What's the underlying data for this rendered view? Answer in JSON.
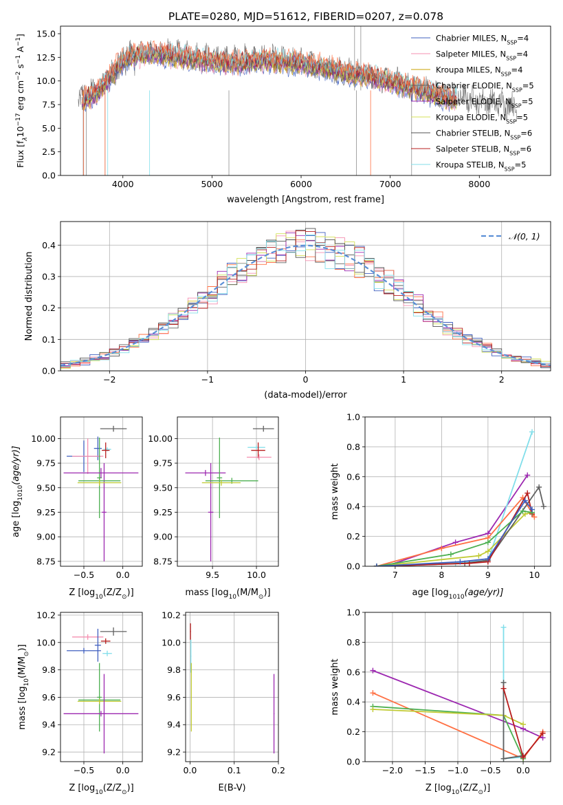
{
  "figure_title": "PLATE=0280, MJD=51612, FIBERID=0207, z=0.078",
  "colors": {
    "chabrier_miles": "#3f5fbf",
    "salpeter_miles": "#f58fb0",
    "kroupa_miles": "#c8a000",
    "chabrier_elodie": "#606060",
    "salpeter_elodie": "#9c27b0",
    "kroupa_elodie": "#d4e157",
    "chabrier_stelib": "#505050",
    "salpeter_stelib": "#b71c1c",
    "kroupa_stelib": "#80deea",
    "model_a": "#ff7043",
    "model_b": "#4caf50",
    "model_c": "#c0ca33",
    "gaussian": "#5b8fd6",
    "grid": "#b0b0b0"
  },
  "chart_data": [
    {
      "id": "spectrum",
      "type": "line",
      "xlabel": "wavelength [Angstrom, rest frame]",
      "ylabel": "Flux [f",
      "ylabel_parts": [
        "Flux [f",
        "λ",
        "10",
        "−17",
        " erg cm",
        "−2",
        " s",
        "−1",
        " A",
        "−1",
        "]"
      ],
      "xlim": [
        3300,
        8800
      ],
      "ylim": [
        0,
        15.8
      ],
      "xticks": [
        4000,
        5000,
        6000,
        7000,
        8000
      ],
      "yticks": [
        0.0,
        2.5,
        5.0,
        7.5,
        10.0,
        12.5,
        15.0
      ],
      "grid": false,
      "legend_position": "top-right",
      "legend": [
        {
          "label": "Chabrier MILES, N",
          "n": "4",
          "color": "#3f5fbf"
        },
        {
          "label": "Salpeter MILES, N",
          "n": "4",
          "color": "#f58fb0"
        },
        {
          "label": "Kroupa MILES, N",
          "n": "4",
          "color": "#c8a000"
        },
        {
          "label": "Chabrier ELODIE, N",
          "n": "5",
          "color": "#606060"
        },
        {
          "label": "Salpeter ELODIE, N",
          "n": "5",
          "color": "#9c27b0"
        },
        {
          "label": "Kroupa ELODIE, N",
          "n": "5",
          "color": "#d4e157"
        },
        {
          "label": "Chabrier STELIB, N",
          "n": "6",
          "color": "#505050"
        },
        {
          "label": "Salpeter STELIB, N",
          "n": "6",
          "color": "#b71c1c"
        },
        {
          "label": "Kroupa STELIB, N",
          "n": "5",
          "color": "#80deea"
        }
      ],
      "legend_sub": "SSP",
      "continuum": [
        [
          3550,
          7.8
        ],
        [
          3700,
          8.6
        ],
        [
          3850,
          10.2
        ],
        [
          3950,
          11.7
        ],
        [
          4100,
          12.6
        ],
        [
          4400,
          12.8
        ],
        [
          4700,
          12.4
        ],
        [
          5000,
          11.9
        ],
        [
          5300,
          11.8
        ],
        [
          5600,
          12.1
        ],
        [
          5900,
          11.9
        ],
        [
          6200,
          11.5
        ],
        [
          6500,
          10.8
        ],
        [
          6800,
          10.3
        ],
        [
          7100,
          9.6
        ],
        [
          7400,
          8.8
        ],
        [
          7700,
          7.9
        ]
      ],
      "observed_continuum": [
        [
          3500,
          8.2
        ],
        [
          3700,
          9.0
        ],
        [
          3900,
          10.8
        ],
        [
          4100,
          12.5
        ],
        [
          4400,
          13.0
        ],
        [
          4800,
          12.6
        ],
        [
          5200,
          12.3
        ],
        [
          5600,
          12.4
        ],
        [
          6000,
          12.0
        ],
        [
          6400,
          11.2
        ],
        [
          6800,
          10.6
        ],
        [
          7200,
          9.6
        ],
        [
          7600,
          8.6
        ],
        [
          8000,
          7.9
        ],
        [
          8300,
          7.5
        ],
        [
          8420,
          7.3
        ]
      ]
    },
    {
      "id": "residuals",
      "type": "area",
      "xlabel": "(data-model)/error",
      "ylabel": "Normed distribution",
      "xlim": [
        -2.5,
        2.5
      ],
      "ylim": [
        0,
        0.475
      ],
      "xticks": [
        -2,
        -1,
        0,
        1,
        2
      ],
      "xtick_labels": [
        "−2",
        "−1",
        "0",
        "1",
        "2"
      ],
      "yticks": [
        0.0,
        0.1,
        0.2,
        0.3,
        0.4
      ],
      "grid": true,
      "legend_position": "top-right",
      "legend_label": "𝒩(0, 1)",
      "bin_width": 0.1
    },
    {
      "id": "age_vs_z",
      "type": "scatter",
      "xlabel": "Z [log",
      "xlabel_tail": "(Z/Z",
      "ylabel": "age  [log",
      "ylabel_tail": "(age/yr)]",
      "xlim": [
        -0.8,
        0.25
      ],
      "ylim": [
        8.7,
        10.22
      ],
      "xticks": [
        -0.5,
        0.0
      ],
      "xtick_labels": [
        "−0.5",
        "0.0"
      ],
      "yticks": [
        8.75,
        9.0,
        9.25,
        9.5,
        9.75,
        10.0
      ],
      "ytick_labels": [
        "8.75",
        "9.00",
        "9.25",
        "9.50",
        "9.75",
        "10.00"
      ],
      "grid": true,
      "points": [
        {
          "x": -0.12,
          "y": 10.1,
          "xe": 0.17,
          "ye": 0.03,
          "color": "#606060"
        },
        {
          "x": -0.2,
          "y": 9.89,
          "xe": 0.05,
          "ye": 0.02,
          "color": "#80deea"
        },
        {
          "x": -0.32,
          "y": 9.9,
          "xe": 0.05,
          "ye": 0.12,
          "color": "#3f5fbf"
        },
        {
          "x": -0.22,
          "y": 9.88,
          "xe": 0.05,
          "ye": 0.08,
          "color": "#b71c1c"
        },
        {
          "x": -0.5,
          "y": 9.82,
          "xe": 0.22,
          "ye": 0.16,
          "color": "#3f5fbf"
        },
        {
          "x": -0.45,
          "y": 9.82,
          "xe": 0.2,
          "ye": 0.18,
          "color": "#f58fb0"
        },
        {
          "x": -0.3,
          "y": 9.6,
          "xe": 0.03,
          "ye": 0.41,
          "color": "#4caf50"
        },
        {
          "x": -0.24,
          "y": 9.25,
          "xe": 0.03,
          "ye": 0.5,
          "color": "#9c27b0"
        },
        {
          "x": -0.28,
          "y": 9.65,
          "xe": 0.48,
          "ye": 0.05,
          "color": "#9c27b0"
        },
        {
          "x": -0.3,
          "y": 9.57,
          "xe": 0.27,
          "ye": 0.03,
          "color": "#4caf50"
        },
        {
          "x": -0.3,
          "y": 9.55,
          "xe": 0.28,
          "ye": 0.03,
          "color": "#c0ca33"
        }
      ]
    },
    {
      "id": "age_vs_mass",
      "type": "scatter",
      "xlabel": "mass [log",
      "xlabel_tail": "(M/M",
      "xlim": [
        9.1,
        10.25
      ],
      "ylim": [
        8.7,
        10.22
      ],
      "xticks": [
        9.5,
        10.0
      ],
      "xtick_labels": [
        "9.5",
        "10.0"
      ],
      "yticks": [
        8.75,
        9.0,
        9.25,
        9.5,
        9.75,
        10.0
      ],
      "ytick_labels": [
        "8.75",
        "9.00",
        "9.25",
        "9.50",
        "9.75",
        "10.00"
      ],
      "grid": true,
      "points": [
        {
          "x": 10.08,
          "y": 10.1,
          "xe": 0.12,
          "ye": 0.03,
          "color": "#606060"
        },
        {
          "x": 10.0,
          "y": 9.91,
          "xe": 0.1,
          "ye": 0.02,
          "color": "#80deea"
        },
        {
          "x": 10.02,
          "y": 9.88,
          "xe": 0.08,
          "ye": 0.08,
          "color": "#b71c1c"
        },
        {
          "x": 10.03,
          "y": 9.81,
          "xe": 0.14,
          "ye": 0.03,
          "color": "#f58fb0"
        },
        {
          "x": 9.48,
          "y": 9.25,
          "xe": 0.03,
          "ye": 0.5,
          "color": "#9c27b0"
        },
        {
          "x": 9.42,
          "y": 9.65,
          "xe": 0.23,
          "ye": 0.03,
          "color": "#9c27b0"
        },
        {
          "x": 9.58,
          "y": 9.6,
          "xe": 0.03,
          "ye": 0.41,
          "color": "#4caf50"
        },
        {
          "x": 9.72,
          "y": 9.57,
          "xe": 0.3,
          "ye": 0.03,
          "color": "#4caf50"
        },
        {
          "x": 9.6,
          "y": 9.55,
          "xe": 0.22,
          "ye": 0.03,
          "color": "#c0ca33"
        }
      ]
    },
    {
      "id": "weight_vs_age",
      "type": "line",
      "xlabel": "age  [log",
      "xlabel_tail": "(age/yr)]",
      "ylabel": "mass weight",
      "xlim": [
        6.35,
        10.35
      ],
      "ylim": [
        0,
        1.0
      ],
      "xticks": [
        7,
        8,
        9,
        10
      ],
      "xtick_labels": [
        "7",
        "8",
        "9",
        "10"
      ],
      "yticks": [
        0.0,
        0.2,
        0.4,
        0.6,
        0.8,
        1.0
      ],
      "ytick_labels": [
        "0.0",
        "0.2",
        "0.4",
        "0.6",
        "0.8",
        "1.0"
      ],
      "grid": true,
      "series": [
        {
          "color": "#9c27b0",
          "x": [
            6.8,
            8.3,
            9.0,
            9.85
          ],
          "y": [
            0.0,
            0.16,
            0.22,
            0.61
          ]
        },
        {
          "color": "#80deea",
          "x": [
            6.6,
            8.3,
            9.0,
            9.95
          ],
          "y": [
            0.0,
            0.02,
            0.04,
            0.9
          ]
        },
        {
          "color": "#ff7043",
          "x": [
            6.6,
            8.0,
            9.0,
            9.75,
            10.0
          ],
          "y": [
            0.0,
            0.12,
            0.19,
            0.46,
            0.33
          ]
        },
        {
          "color": "#c0ca33",
          "x": [
            6.6,
            8.8,
            9.0,
            9.8,
            9.95
          ],
          "y": [
            0.0,
            0.07,
            0.1,
            0.35,
            0.36
          ]
        },
        {
          "color": "#606060",
          "x": [
            6.6,
            8.5,
            9.0,
            10.1,
            10.2
          ],
          "y": [
            0.0,
            0.02,
            0.04,
            0.53,
            0.4
          ]
        },
        {
          "color": "#b71c1c",
          "x": [
            6.6,
            8.6,
            9.0,
            9.85,
            9.95
          ],
          "y": [
            0.0,
            0.02,
            0.03,
            0.49,
            0.35
          ]
        },
        {
          "color": "#4caf50",
          "x": [
            6.6,
            8.2,
            9.0,
            9.75,
            9.95
          ],
          "y": [
            0.0,
            0.08,
            0.16,
            0.37,
            0.36
          ]
        },
        {
          "color": "#3f5fbf",
          "x": [
            6.6,
            8.4,
            9.0,
            9.8,
            9.95
          ],
          "y": [
            0.0,
            0.03,
            0.05,
            0.44,
            0.38
          ]
        }
      ]
    },
    {
      "id": "mass_vs_z",
      "type": "scatter",
      "xlabel": "Z [log",
      "xlabel_tail": "(Z/Z",
      "ylabel": "mass [log",
      "ylabel_tail": "(M/M",
      "xlim": [
        -0.8,
        0.25
      ],
      "ylim": [
        9.13,
        10.22
      ],
      "xticks": [
        -0.5,
        0.0
      ],
      "xtick_labels": [
        "−0.5",
        "0.0"
      ],
      "yticks": [
        9.2,
        9.4,
        9.6,
        9.8,
        10.0,
        10.2
      ],
      "ytick_labels": [
        "9.2",
        "9.4",
        "9.6",
        "9.8",
        "10.0",
        "10.2"
      ],
      "grid": true,
      "points": [
        {
          "x": -0.12,
          "y": 10.08,
          "xe": 0.17,
          "ye": 0.03,
          "color": "#606060"
        },
        {
          "x": -0.2,
          "y": 9.92,
          "xe": 0.06,
          "ye": 0.02,
          "color": "#80deea"
        },
        {
          "x": -0.45,
          "y": 10.04,
          "xe": 0.2,
          "ye": 0.02,
          "color": "#f58fb0"
        },
        {
          "x": -0.22,
          "y": 10.01,
          "xe": 0.06,
          "ye": 0.02,
          "color": "#b71c1c"
        },
        {
          "x": -0.5,
          "y": 9.94,
          "xe": 0.22,
          "ye": 0.02,
          "color": "#3f5fbf"
        },
        {
          "x": -0.32,
          "y": 9.98,
          "xe": 0.04,
          "ye": 0.12,
          "color": "#3f5fbf"
        },
        {
          "x": -0.3,
          "y": 9.6,
          "xe": 0.03,
          "ye": 0.25,
          "color": "#4caf50"
        },
        {
          "x": -0.3,
          "y": 9.58,
          "xe": 0.27,
          "ye": 0.02,
          "color": "#4caf50"
        },
        {
          "x": -0.3,
          "y": 9.57,
          "xe": 0.28,
          "ye": 0.02,
          "color": "#c0ca33"
        },
        {
          "x": -0.24,
          "y": 9.48,
          "xe": 0.03,
          "ye": 0.29,
          "color": "#9c27b0"
        },
        {
          "x": -0.28,
          "y": 9.48,
          "xe": 0.48,
          "ye": 0.02,
          "color": "#9c27b0"
        }
      ]
    },
    {
      "id": "mass_vs_ebv",
      "type": "scatter",
      "xlabel": "E(B-V)",
      "xlim": [
        -0.01,
        0.2
      ],
      "ylim": [
        9.13,
        10.22
      ],
      "xticks": [
        0.0,
        0.1,
        0.2
      ],
      "xtick_labels": [
        "0.0",
        "0.1",
        "0.2"
      ],
      "yticks": [
        9.2,
        9.4,
        9.6,
        9.8,
        10.0,
        10.2
      ],
      "ytick_labels": [
        "9.2",
        "9.4",
        "9.6",
        "9.8",
        "10.0",
        "10.2"
      ],
      "grid": true,
      "points": [
        {
          "x": 0.001,
          "y": 10.08,
          "xe": 0.001,
          "ye": 0.06,
          "color": "#b71c1c"
        },
        {
          "x": 0.002,
          "y": 9.9,
          "xe": 0.001,
          "ye": 0.12,
          "color": "#80deea"
        },
        {
          "x": 0.003,
          "y": 9.6,
          "xe": 0.001,
          "ye": 0.25,
          "color": "#c0ca33"
        },
        {
          "x": 0.19,
          "y": 9.48,
          "xe": 0.001,
          "ye": 0.29,
          "color": "#9c27b0"
        }
      ]
    },
    {
      "id": "weight_vs_z",
      "type": "line",
      "xlabel": "Z [log",
      "xlabel_tail": "(Z/Z",
      "ylabel": "mass weight",
      "xlim": [
        -2.42,
        0.42
      ],
      "ylim": [
        0,
        1.0
      ],
      "xticks": [
        -2.0,
        -1.5,
        -1.0,
        -0.5,
        0.0
      ],
      "xtick_labels": [
        "−2.0",
        "−1.5",
        "−1.0",
        "−0.5",
        "0.0"
      ],
      "yticks": [
        0.0,
        0.2,
        0.4,
        0.6,
        0.8,
        1.0
      ],
      "ytick_labels": [
        "0.0",
        "0.2",
        "0.4",
        "0.6",
        "0.8",
        "1.0"
      ],
      "grid": true,
      "series": [
        {
          "color": "#9c27b0",
          "x": [
            -2.3,
            0.0,
            0.3
          ],
          "y": [
            0.61,
            0.22,
            0.16
          ]
        },
        {
          "color": "#ff7043",
          "x": [
            -2.3,
            0.0,
            0.3
          ],
          "y": [
            0.46,
            0.02,
            0.2
          ]
        },
        {
          "color": "#4caf50",
          "x": [
            -2.3,
            -0.3,
            0.0
          ],
          "y": [
            0.37,
            0.31,
            0.02
          ]
        },
        {
          "color": "#c0ca33",
          "x": [
            -2.3,
            -0.3,
            0.0
          ],
          "y": [
            0.35,
            0.31,
            0.25
          ]
        },
        {
          "color": "#80deea",
          "x": [
            -0.3,
            -0.3,
            0.0
          ],
          "y": [
            0.9,
            0.02,
            0.03
          ]
        },
        {
          "color": "#606060",
          "x": [
            -0.3,
            -0.3,
            0.0
          ],
          "y": [
            0.53,
            0.02,
            0.04
          ]
        },
        {
          "color": "#b71c1c",
          "x": [
            -0.3,
            0.0,
            0.3
          ],
          "y": [
            0.49,
            0.03,
            0.19
          ]
        }
      ]
    }
  ]
}
